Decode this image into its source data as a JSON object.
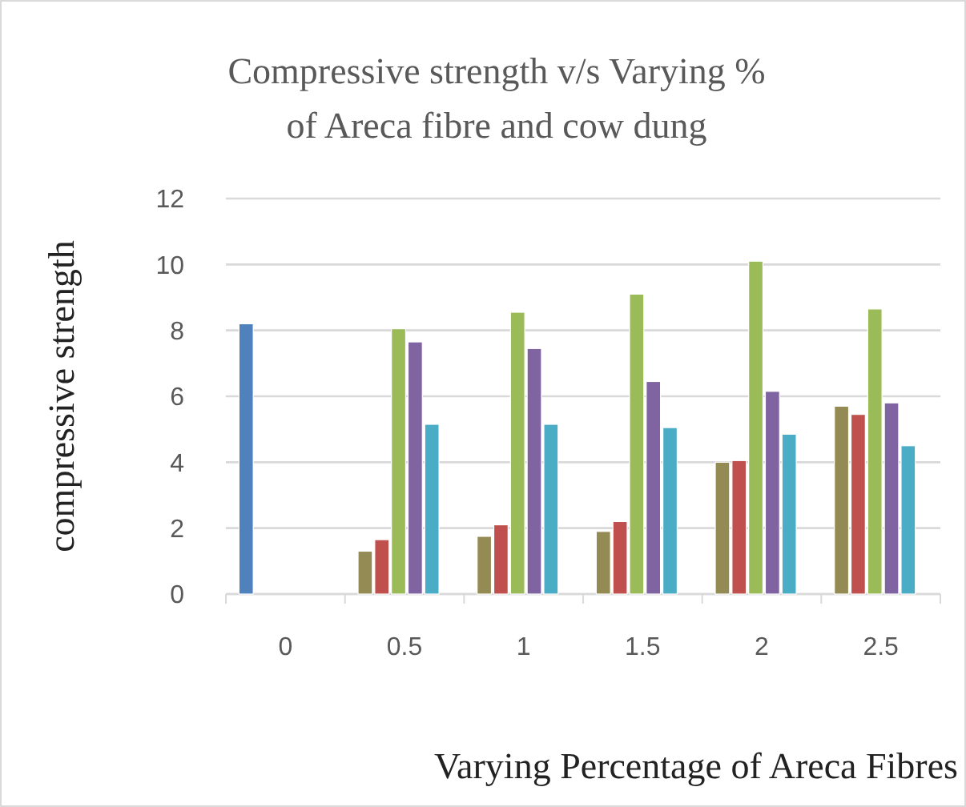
{
  "chart_data": {
    "type": "bar",
    "title": "Compressive strength v/s Varying % of Areca fibre and cow dung",
    "xlabel": "Varying Percentage of Areca Fibres",
    "ylabel": "compressive strength",
    "categories": [
      "0",
      "0.5",
      "1",
      "1.5",
      "2",
      "2.5"
    ],
    "series": [
      {
        "colors": [
          "#4f81bd",
          "#948a54",
          "#948a54",
          "#948a54",
          "#948a54",
          "#948a54"
        ],
        "values": [
          8.2,
          1.3,
          1.75,
          1.9,
          4.0,
          5.7
        ]
      },
      {
        "color": "#c0504d",
        "values": [
          null,
          1.65,
          2.1,
          2.2,
          4.05,
          5.45
        ]
      },
      {
        "color": "#9bbb59",
        "values": [
          null,
          8.05,
          8.55,
          9.1,
          10.1,
          8.65
        ]
      },
      {
        "color": "#8064a2",
        "values": [
          null,
          7.65,
          7.45,
          6.45,
          6.15,
          5.8
        ]
      },
      {
        "color": "#4bacc6",
        "values": [
          null,
          5.15,
          5.15,
          5.05,
          4.85,
          4.5
        ]
      }
    ],
    "ylim": [
      0,
      12
    ],
    "yticks": [
      0,
      2,
      4,
      6,
      8,
      10,
      12
    ],
    "grid": "y",
    "legend": false
  }
}
